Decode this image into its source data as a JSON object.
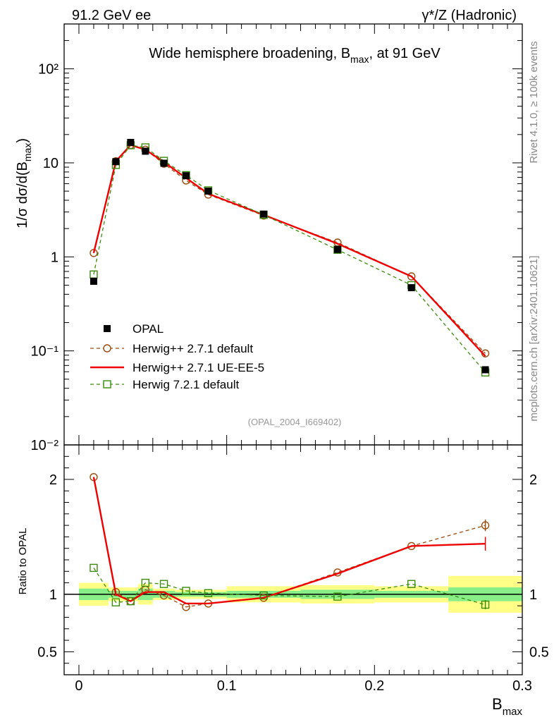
{
  "header": {
    "left": "91.2 GeV ee",
    "right": "γ*/Z (Hadronic)"
  },
  "side_labels": {
    "rivet": "Rivet 4.1.0, ≥ 100k events",
    "mcplots": "mcplots.cern.ch [arXiv:2401.10621]"
  },
  "analysis_tag": "(OPAL_2004_I669402)",
  "chart_data": [
    {
      "type": "line",
      "title": "Wide hemisphere broadening, B_max, at 91 GeV",
      "xlabel": "B_max",
      "ylabel": "1/σ dσ/d(B_max)",
      "yscale": "log",
      "xlim": [
        -0.01,
        0.3
      ],
      "ylim": [
        0.01,
        300
      ],
      "yticks": [
        {
          "value": 0.01,
          "label": "10⁻²"
        },
        {
          "value": 0.1,
          "label": "10⁻¹"
        },
        {
          "value": 1,
          "label": "1"
        },
        {
          "value": 10,
          "label": "10"
        },
        {
          "value": 100,
          "label": "10²"
        }
      ],
      "series": [
        {
          "name": "OPAL",
          "style": "marker-square-filled",
          "color": "#000000",
          "x": [
            0.01,
            0.025,
            0.035,
            0.045,
            0.0575,
            0.0725,
            0.0875,
            0.125,
            0.175,
            0.225,
            0.275
          ],
          "y": [
            0.55,
            10.3,
            16.5,
            13.3,
            9.9,
            7.3,
            5.0,
            2.85,
            1.2,
            0.47,
            0.063
          ]
        },
        {
          "name": "Herwig++ 2.7.1 default",
          "style": "dashed-open-circle",
          "color": "#9c4a0c",
          "x": [
            0.01,
            0.025,
            0.035,
            0.045,
            0.0575,
            0.0725,
            0.0875,
            0.125,
            0.175,
            0.225,
            0.275
          ],
          "y": [
            1.1,
            10.4,
            15.5,
            13.8,
            9.8,
            6.5,
            4.6,
            2.75,
            1.42,
            0.62,
            0.094
          ]
        },
        {
          "name": "Herwig++ 2.7.1 UE-EE-5",
          "style": "solid",
          "color": "#ee0000",
          "x": [
            0.01,
            0.025,
            0.035,
            0.045,
            0.0575,
            0.0725,
            0.0875,
            0.125,
            0.175,
            0.225,
            0.275
          ],
          "y": [
            1.1,
            10.4,
            15.5,
            13.8,
            10.2,
            6.9,
            4.7,
            2.8,
            1.38,
            0.62,
            0.088
          ]
        },
        {
          "name": "Herwig 7.2.1 default",
          "style": "dashed-open-square",
          "color": "#3a8c0a",
          "x": [
            0.01,
            0.025,
            0.035,
            0.045,
            0.0575,
            0.0725,
            0.0875,
            0.125,
            0.175,
            0.225,
            0.275
          ],
          "y": [
            0.65,
            9.5,
            15.4,
            14.6,
            10.5,
            7.4,
            5.1,
            2.8,
            1.19,
            0.5,
            0.059
          ]
        }
      ]
    },
    {
      "type": "line",
      "ylabel": "Ratio to OPAL",
      "xlabel": "B_max",
      "xlim": [
        -0.01,
        0.3
      ],
      "ylim": [
        0.3,
        2.3
      ],
      "xticks": [
        {
          "value": 0,
          "label": "0"
        },
        {
          "value": 0.1,
          "label": "0.1"
        },
        {
          "value": 0.2,
          "label": "0.2"
        },
        {
          "value": 0.3,
          "label": "0.3"
        }
      ],
      "yticks": [
        {
          "value": 0.5,
          "label": "0.5"
        },
        {
          "value": 1,
          "label": "1"
        },
        {
          "value": 2,
          "label": "2"
        }
      ],
      "bands": [
        {
          "x0": 0.0,
          "x1": 0.02,
          "inner": 0.05,
          "outer": 0.1
        },
        {
          "x0": 0.02,
          "x1": 0.03,
          "inner": 0.03,
          "outer": 0.06
        },
        {
          "x0": 0.03,
          "x1": 0.04,
          "inner": 0.03,
          "outer": 0.06
        },
        {
          "x0": 0.04,
          "x1": 0.05,
          "inner": 0.05,
          "outer": 0.09
        },
        {
          "x0": 0.05,
          "x1": 0.065,
          "inner": 0.03,
          "outer": 0.05
        },
        {
          "x0": 0.065,
          "x1": 0.08,
          "inner": 0.02,
          "outer": 0.04
        },
        {
          "x0": 0.08,
          "x1": 0.1,
          "inner": 0.02,
          "outer": 0.04
        },
        {
          "x0": 0.1,
          "x1": 0.15,
          "inner": 0.03,
          "outer": 0.07
        },
        {
          "x0": 0.15,
          "x1": 0.2,
          "inner": 0.04,
          "outer": 0.08
        },
        {
          "x0": 0.2,
          "x1": 0.25,
          "inner": 0.03,
          "outer": 0.07
        },
        {
          "x0": 0.25,
          "x1": 0.3,
          "inner": 0.06,
          "outer": 0.16
        }
      ],
      "series": [
        {
          "name": "Herwig++ 2.7.1 default",
          "style": "dashed-open-circle",
          "color": "#9c4a0c",
          "x": [
            0.01,
            0.025,
            0.035,
            0.045,
            0.0575,
            0.0725,
            0.0875,
            0.125,
            0.175,
            0.225,
            0.275
          ],
          "y": [
            2.02,
            1.02,
            0.94,
            1.04,
            0.99,
            0.89,
            0.92,
            0.97,
            1.19,
            1.42,
            1.6
          ]
        },
        {
          "name": "Herwig++ 2.7.1 UE-EE-5",
          "style": "solid",
          "color": "#ee0000",
          "x": [
            0.01,
            0.025,
            0.035,
            0.045,
            0.0575,
            0.0725,
            0.0875,
            0.125,
            0.175,
            0.225,
            0.275
          ],
          "y": [
            2.02,
            1.0,
            0.94,
            1.02,
            1.02,
            0.92,
            0.92,
            0.97,
            1.18,
            1.42,
            1.44
          ]
        },
        {
          "name": "Herwig 7.2.1 default",
          "style": "dashed-open-square",
          "color": "#3a8c0a",
          "x": [
            0.01,
            0.025,
            0.035,
            0.045,
            0.0575,
            0.0725,
            0.0875,
            0.125,
            0.175,
            0.225,
            0.275
          ],
          "y": [
            1.23,
            0.93,
            0.94,
            1.1,
            1.09,
            1.03,
            1.01,
            0.99,
            0.98,
            1.09,
            0.91
          ]
        }
      ]
    }
  ]
}
